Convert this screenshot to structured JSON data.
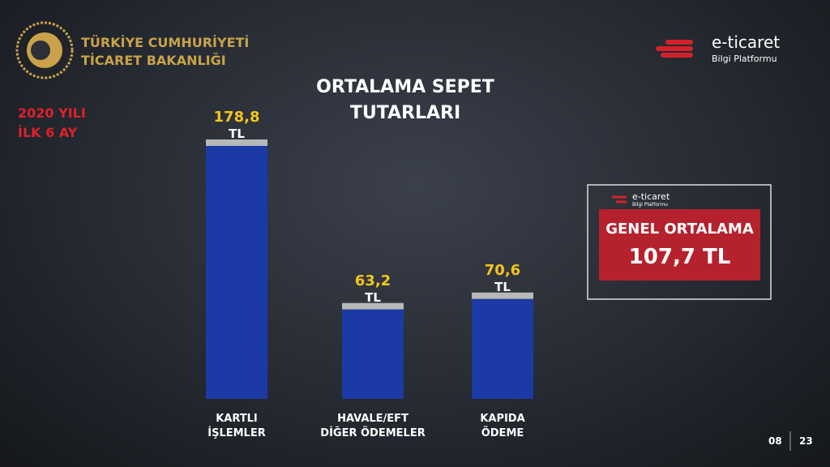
{
  "header": {
    "org": "TÜRKİYE CUMHURİYETİ\nTİCARET BAKANLIĞI",
    "brand": "e-ticaret",
    "brand_sub": "Bilgi Platformu"
  },
  "period": "2020 YILI\nİLK 6 AY",
  "chart_data": {
    "type": "bar",
    "title": "ORTALAMA SEPET\nTUTARLARI",
    "categories": [
      "KARTLI\nİŞLEMLER",
      "HAVALE/EFT\nDİĞER ÖDEMELER",
      "KAPIDA\nÖDEME"
    ],
    "values": [
      178.8,
      63.2,
      70.6
    ],
    "value_labels": [
      "178,8",
      "63,2",
      "70,6"
    ],
    "value_unit": "TL",
    "color": "#1c3aa6"
  },
  "summary": {
    "brand": "e-ticaret",
    "brand_sub": "Bilgi Platformu",
    "label": "GENEL ORTALAMA",
    "value_label": "107,7 TL"
  },
  "footer": {
    "page": "08",
    "total": "23"
  }
}
